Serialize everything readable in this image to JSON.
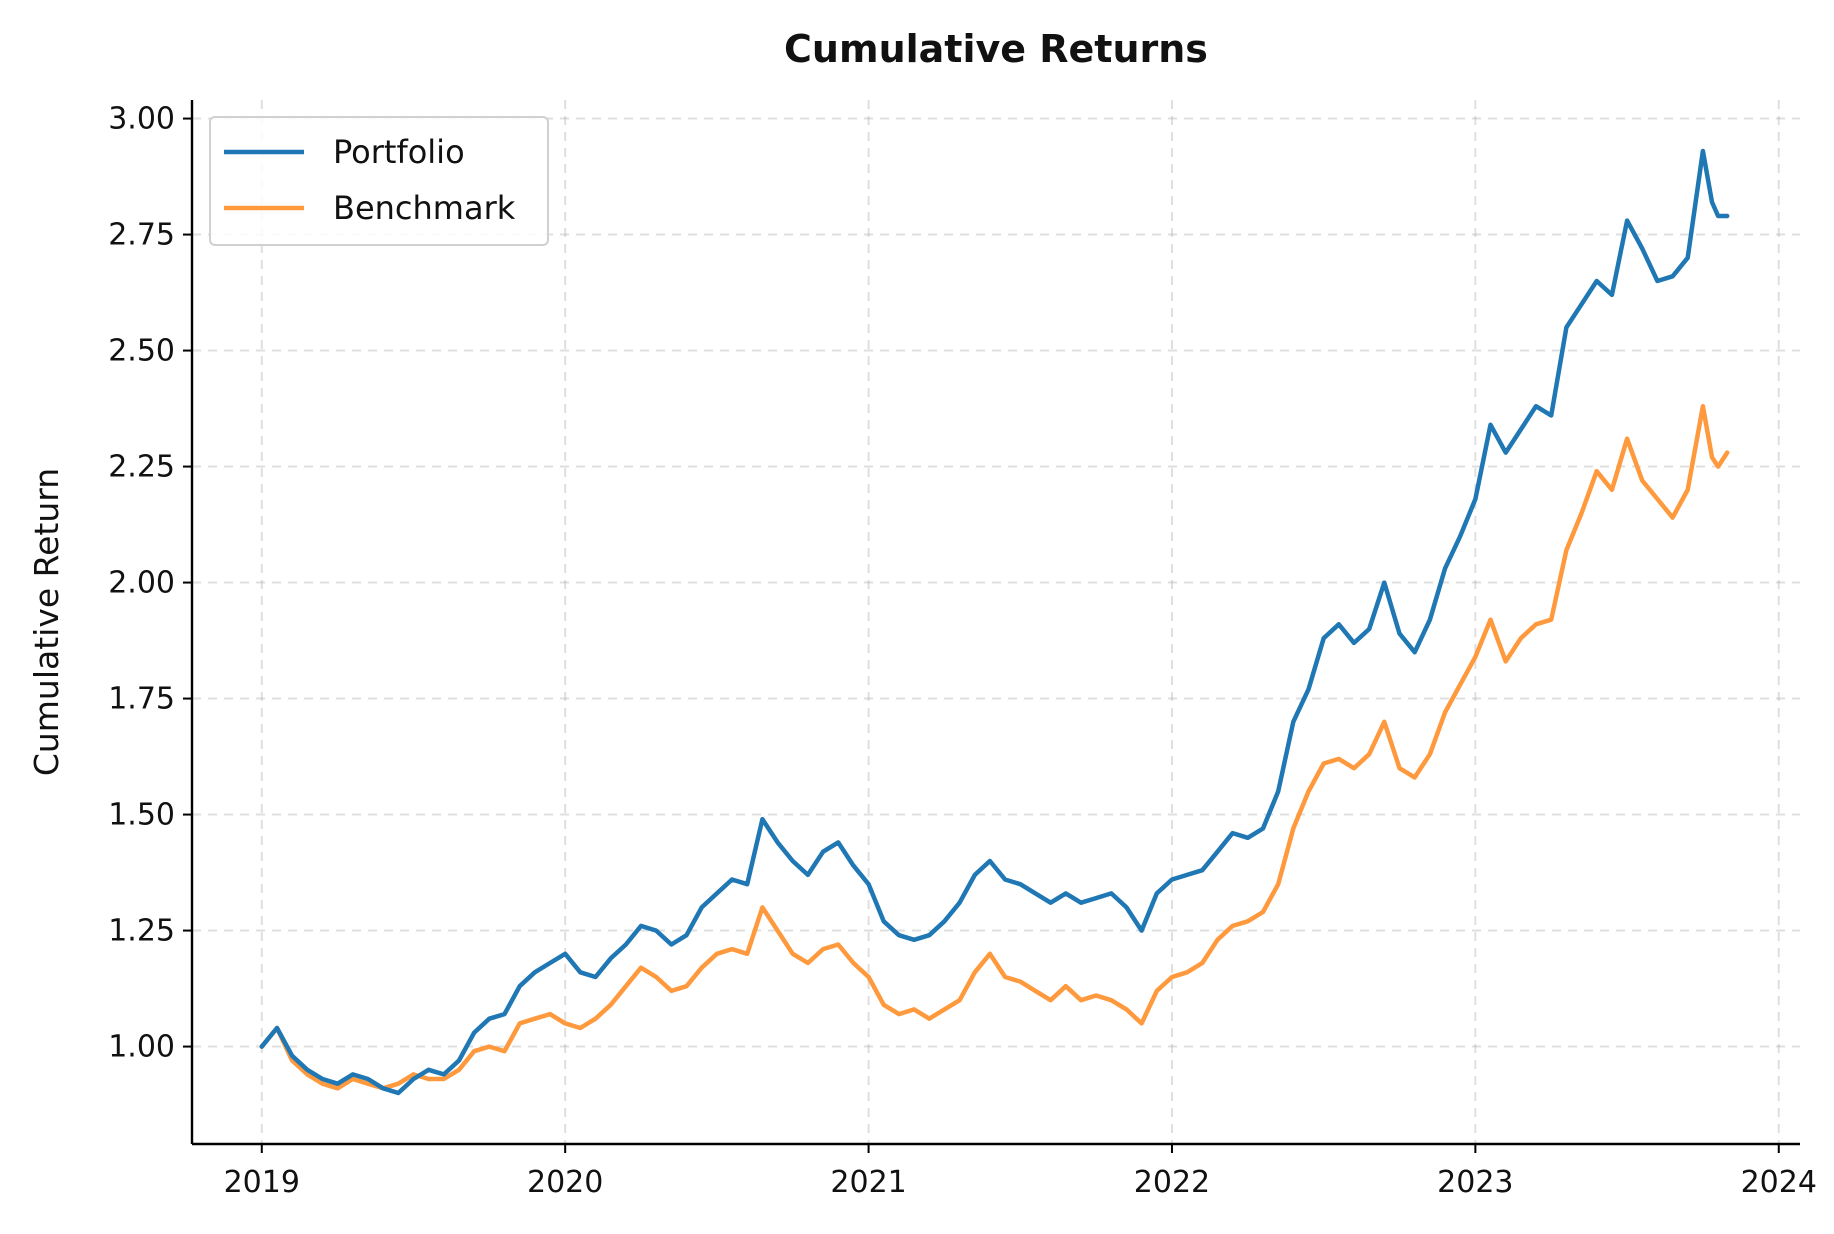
{
  "chart_data": {
    "type": "line",
    "title": "Cumulative Returns",
    "xlabel": "",
    "ylabel": "Cumulative Return",
    "xlim": [
      2018.77,
      2024.07
    ],
    "ylim": [
      0.79,
      3.04
    ],
    "xticks": [
      2019,
      2020,
      2021,
      2022,
      2023,
      2024
    ],
    "xtick_labels": [
      "2019",
      "2020",
      "2021",
      "2022",
      "2023",
      "2024"
    ],
    "yticks": [
      1.0,
      1.25,
      1.5,
      1.75,
      2.0,
      2.25,
      2.5,
      2.75,
      3.0
    ],
    "ytick_labels": [
      "1.00",
      "1.25",
      "1.50",
      "1.75",
      "2.00",
      "2.25",
      "2.50",
      "2.75",
      "3.00"
    ],
    "grid": true,
    "legend_position": "top-left",
    "series": [
      {
        "name": "Portfolio",
        "color": "#1f77b4",
        "points": [
          [
            2019.0,
            1.0
          ],
          [
            2019.05,
            1.04
          ],
          [
            2019.1,
            0.98
          ],
          [
            2019.15,
            0.95
          ],
          [
            2019.2,
            0.93
          ],
          [
            2019.25,
            0.92
          ],
          [
            2019.3,
            0.94
          ],
          [
            2019.35,
            0.93
          ],
          [
            2019.4,
            0.91
          ],
          [
            2019.45,
            0.9
          ],
          [
            2019.5,
            0.93
          ],
          [
            2019.55,
            0.95
          ],
          [
            2019.6,
            0.94
          ],
          [
            2019.65,
            0.97
          ],
          [
            2019.7,
            1.03
          ],
          [
            2019.75,
            1.06
          ],
          [
            2019.8,
            1.07
          ],
          [
            2019.85,
            1.13
          ],
          [
            2019.9,
            1.16
          ],
          [
            2019.95,
            1.18
          ],
          [
            2020.0,
            1.2
          ],
          [
            2020.05,
            1.16
          ],
          [
            2020.1,
            1.15
          ],
          [
            2020.15,
            1.19
          ],
          [
            2020.2,
            1.22
          ],
          [
            2020.25,
            1.26
          ],
          [
            2020.3,
            1.25
          ],
          [
            2020.35,
            1.22
          ],
          [
            2020.4,
            1.24
          ],
          [
            2020.45,
            1.3
          ],
          [
            2020.5,
            1.33
          ],
          [
            2020.55,
            1.36
          ],
          [
            2020.6,
            1.35
          ],
          [
            2020.65,
            1.49
          ],
          [
            2020.7,
            1.44
          ],
          [
            2020.75,
            1.4
          ],
          [
            2020.8,
            1.37
          ],
          [
            2020.85,
            1.42
          ],
          [
            2020.9,
            1.44
          ],
          [
            2020.95,
            1.39
          ],
          [
            2021.0,
            1.35
          ],
          [
            2021.05,
            1.27
          ],
          [
            2021.1,
            1.24
          ],
          [
            2021.15,
            1.23
          ],
          [
            2021.2,
            1.24
          ],
          [
            2021.25,
            1.27
          ],
          [
            2021.3,
            1.31
          ],
          [
            2021.35,
            1.37
          ],
          [
            2021.4,
            1.4
          ],
          [
            2021.45,
            1.36
          ],
          [
            2021.5,
            1.35
          ],
          [
            2021.55,
            1.33
          ],
          [
            2021.6,
            1.31
          ],
          [
            2021.65,
            1.33
          ],
          [
            2021.7,
            1.31
          ],
          [
            2021.75,
            1.32
          ],
          [
            2021.8,
            1.33
          ],
          [
            2021.85,
            1.3
          ],
          [
            2021.9,
            1.25
          ],
          [
            2021.95,
            1.33
          ],
          [
            2022.0,
            1.36
          ],
          [
            2022.05,
            1.37
          ],
          [
            2022.1,
            1.38
          ],
          [
            2022.15,
            1.42
          ],
          [
            2022.2,
            1.46
          ],
          [
            2022.25,
            1.45
          ],
          [
            2022.3,
            1.47
          ],
          [
            2022.35,
            1.55
          ],
          [
            2022.4,
            1.7
          ],
          [
            2022.45,
            1.77
          ],
          [
            2022.5,
            1.88
          ],
          [
            2022.55,
            1.91
          ],
          [
            2022.6,
            1.87
          ],
          [
            2022.65,
            1.9
          ],
          [
            2022.7,
            2.0
          ],
          [
            2022.75,
            1.89
          ],
          [
            2022.8,
            1.85
          ],
          [
            2022.85,
            1.92
          ],
          [
            2022.9,
            2.03
          ],
          [
            2022.95,
            2.1
          ],
          [
            2023.0,
            2.18
          ],
          [
            2023.05,
            2.34
          ],
          [
            2023.1,
            2.28
          ],
          [
            2023.15,
            2.33
          ],
          [
            2023.2,
            2.38
          ],
          [
            2023.25,
            2.36
          ],
          [
            2023.3,
            2.55
          ],
          [
            2023.35,
            2.6
          ],
          [
            2023.4,
            2.65
          ],
          [
            2023.45,
            2.62
          ],
          [
            2023.5,
            2.78
          ],
          [
            2023.55,
            2.72
          ],
          [
            2023.6,
            2.65
          ],
          [
            2023.65,
            2.66
          ],
          [
            2023.7,
            2.7
          ],
          [
            2023.75,
            2.93
          ],
          [
            2023.78,
            2.82
          ],
          [
            2023.8,
            2.79
          ],
          [
            2023.83,
            2.79
          ]
        ]
      },
      {
        "name": "Benchmark",
        "color": "#ff993d",
        "points": [
          [
            2019.0,
            1.0
          ],
          [
            2019.05,
            1.04
          ],
          [
            2019.1,
            0.97
          ],
          [
            2019.15,
            0.94
          ],
          [
            2019.2,
            0.92
          ],
          [
            2019.25,
            0.91
          ],
          [
            2019.3,
            0.93
          ],
          [
            2019.35,
            0.92
          ],
          [
            2019.4,
            0.91
          ],
          [
            2019.45,
            0.92
          ],
          [
            2019.5,
            0.94
          ],
          [
            2019.55,
            0.93
          ],
          [
            2019.6,
            0.93
          ],
          [
            2019.65,
            0.95
          ],
          [
            2019.7,
            0.99
          ],
          [
            2019.75,
            1.0
          ],
          [
            2019.8,
            0.99
          ],
          [
            2019.85,
            1.05
          ],
          [
            2019.9,
            1.06
          ],
          [
            2019.95,
            1.07
          ],
          [
            2020.0,
            1.05
          ],
          [
            2020.05,
            1.04
          ],
          [
            2020.1,
            1.06
          ],
          [
            2020.15,
            1.09
          ],
          [
            2020.2,
            1.13
          ],
          [
            2020.25,
            1.17
          ],
          [
            2020.3,
            1.15
          ],
          [
            2020.35,
            1.12
          ],
          [
            2020.4,
            1.13
          ],
          [
            2020.45,
            1.17
          ],
          [
            2020.5,
            1.2
          ],
          [
            2020.55,
            1.21
          ],
          [
            2020.6,
            1.2
          ],
          [
            2020.65,
            1.3
          ],
          [
            2020.7,
            1.25
          ],
          [
            2020.75,
            1.2
          ],
          [
            2020.8,
            1.18
          ],
          [
            2020.85,
            1.21
          ],
          [
            2020.9,
            1.22
          ],
          [
            2020.95,
            1.18
          ],
          [
            2021.0,
            1.15
          ],
          [
            2021.05,
            1.09
          ],
          [
            2021.1,
            1.07
          ],
          [
            2021.15,
            1.08
          ],
          [
            2021.2,
            1.06
          ],
          [
            2021.25,
            1.08
          ],
          [
            2021.3,
            1.1
          ],
          [
            2021.35,
            1.16
          ],
          [
            2021.4,
            1.2
          ],
          [
            2021.45,
            1.15
          ],
          [
            2021.5,
            1.14
          ],
          [
            2021.55,
            1.12
          ],
          [
            2021.6,
            1.1
          ],
          [
            2021.65,
            1.13
          ],
          [
            2021.7,
            1.1
          ],
          [
            2021.75,
            1.11
          ],
          [
            2021.8,
            1.1
          ],
          [
            2021.85,
            1.08
          ],
          [
            2021.9,
            1.05
          ],
          [
            2021.95,
            1.12
          ],
          [
            2022.0,
            1.15
          ],
          [
            2022.05,
            1.16
          ],
          [
            2022.1,
            1.18
          ],
          [
            2022.15,
            1.23
          ],
          [
            2022.2,
            1.26
          ],
          [
            2022.25,
            1.27
          ],
          [
            2022.3,
            1.29
          ],
          [
            2022.35,
            1.35
          ],
          [
            2022.4,
            1.47
          ],
          [
            2022.45,
            1.55
          ],
          [
            2022.5,
            1.61
          ],
          [
            2022.55,
            1.62
          ],
          [
            2022.6,
            1.6
          ],
          [
            2022.65,
            1.63
          ],
          [
            2022.7,
            1.7
          ],
          [
            2022.75,
            1.6
          ],
          [
            2022.8,
            1.58
          ],
          [
            2022.85,
            1.63
          ],
          [
            2022.9,
            1.72
          ],
          [
            2022.95,
            1.78
          ],
          [
            2023.0,
            1.84
          ],
          [
            2023.05,
            1.92
          ],
          [
            2023.1,
            1.83
          ],
          [
            2023.15,
            1.88
          ],
          [
            2023.2,
            1.91
          ],
          [
            2023.25,
            1.92
          ],
          [
            2023.3,
            2.07
          ],
          [
            2023.35,
            2.15
          ],
          [
            2023.4,
            2.24
          ],
          [
            2023.45,
            2.2
          ],
          [
            2023.5,
            2.31
          ],
          [
            2023.55,
            2.22
          ],
          [
            2023.6,
            2.18
          ],
          [
            2023.65,
            2.14
          ],
          [
            2023.7,
            2.2
          ],
          [
            2023.75,
            2.38
          ],
          [
            2023.78,
            2.27
          ],
          [
            2023.8,
            2.25
          ],
          [
            2023.83,
            2.28
          ]
        ]
      }
    ]
  }
}
